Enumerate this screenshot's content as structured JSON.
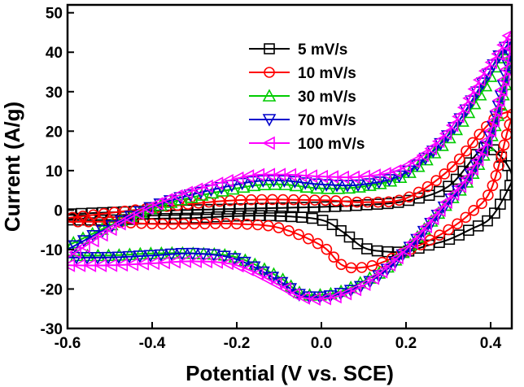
{
  "chart_data": {
    "type": "line",
    "xlabel": "Potential (V vs. SCE)",
    "ylabel": "Current (A/g)",
    "xlim": [
      -0.6,
      0.45
    ],
    "ylim": [
      -30,
      52
    ],
    "xticks": [
      -0.6,
      -0.4,
      -0.2,
      0.0,
      0.2,
      0.4
    ],
    "xtick_labels": [
      "-0.6",
      "-0.4",
      "-0.2",
      "0.0",
      "0.2",
      "0.4"
    ],
    "yticks": [
      -30,
      -20,
      -10,
      0,
      10,
      20,
      30,
      40,
      50
    ],
    "ytick_labels": [
      "-30",
      "-20",
      "-10",
      "0",
      "10",
      "20",
      "30",
      "40",
      "50"
    ],
    "legend_position": "top-center",
    "series": [
      {
        "name": "5 mV/s",
        "color": "#000000",
        "marker": "square",
        "x": [
          -0.6,
          -0.4,
          -0.2,
          0.0,
          0.1,
          0.2,
          0.3,
          0.38,
          0.42,
          0.45,
          0.44,
          0.4,
          0.35,
          0.3,
          0.25,
          0.2,
          0.15,
          0.1,
          0.05,
          0.0,
          -0.1,
          -0.2,
          -0.3,
          -0.4,
          -0.5,
          -0.6
        ],
        "y": [
          -1.0,
          -0.2,
          0.3,
          0.8,
          1.3,
          2.3,
          6.0,
          15.5,
          14.0,
          9.0,
          5.0,
          -2.0,
          -5.0,
          -7.5,
          -9.0,
          -10.5,
          -10.5,
          -9.5,
          -5.5,
          -2.5,
          -1.5,
          -1.5,
          -2.0,
          -2.2,
          -2.5,
          -2.5
        ]
      },
      {
        "name": "10 mV/s",
        "color": "#ff0000",
        "marker": "circle",
        "x": [
          -0.6,
          -0.4,
          -0.2,
          0.0,
          0.1,
          0.2,
          0.3,
          0.38,
          0.42,
          0.45,
          0.44,
          0.4,
          0.35,
          0.3,
          0.25,
          0.2,
          0.15,
          0.1,
          0.05,
          0.0,
          -0.1,
          -0.2,
          -0.3,
          -0.4,
          -0.5,
          -0.6
        ],
        "y": [
          -2.0,
          0.5,
          2.5,
          2.5,
          2.0,
          3.0,
          10.0,
          20.0,
          24.0,
          24.5,
          20.0,
          5.0,
          -1.0,
          -5.0,
          -8.0,
          -10.5,
          -13.0,
          -14.5,
          -14.0,
          -9.0,
          -4.5,
          -3.5,
          -3.5,
          -3.5,
          -3.0,
          -3.0
        ]
      },
      {
        "name": "30 mV/s",
        "color": "#00cc00",
        "marker": "triangle-up",
        "x": [
          -0.6,
          -0.4,
          -0.2,
          -0.1,
          0.0,
          0.1,
          0.2,
          0.3,
          0.38,
          0.42,
          0.45,
          0.44,
          0.4,
          0.35,
          0.3,
          0.25,
          0.2,
          0.15,
          0.1,
          0.05,
          0.0,
          -0.05,
          -0.1,
          -0.2,
          -0.3,
          -0.4,
          -0.5,
          -0.6
        ],
        "y": [
          -9.0,
          0.5,
          5.5,
          6.5,
          5.5,
          6.0,
          9.0,
          18.0,
          30.0,
          38.0,
          41.0,
          34.0,
          18.0,
          8.0,
          2.0,
          -4.0,
          -10.0,
          -15.0,
          -18.0,
          -20.5,
          -21.5,
          -21.0,
          -17.0,
          -12.0,
          -11.0,
          -11.0,
          -11.5,
          -11.5
        ]
      },
      {
        "name": "70 mV/s",
        "color": "#0000cc",
        "marker": "triangle-down",
        "x": [
          -0.6,
          -0.4,
          -0.2,
          -0.1,
          0.0,
          0.1,
          0.2,
          0.3,
          0.38,
          0.42,
          0.45,
          0.44,
          0.4,
          0.35,
          0.3,
          0.25,
          0.2,
          0.15,
          0.1,
          0.05,
          0.0,
          -0.05,
          -0.1,
          -0.2,
          -0.3,
          -0.4,
          -0.5,
          -0.6
        ],
        "y": [
          -10.0,
          0.8,
          6.5,
          7.5,
          6.5,
          6.5,
          9.5,
          19.0,
          32.0,
          39.0,
          42.5,
          36.0,
          19.0,
          8.5,
          2.0,
          -4.5,
          -10.5,
          -15.5,
          -19.0,
          -21.0,
          -22.0,
          -21.5,
          -18.0,
          -12.5,
          -11.0,
          -11.5,
          -12.0,
          -12.0
        ]
      },
      {
        "name": "100 mV/s",
        "color": "#ff00ff",
        "marker": "triangle-left",
        "x": [
          -0.6,
          -0.4,
          -0.2,
          -0.1,
          0.0,
          0.1,
          0.2,
          0.3,
          0.38,
          0.42,
          0.45,
          0.44,
          0.4,
          0.35,
          0.3,
          0.25,
          0.2,
          0.15,
          0.1,
          0.05,
          0.0,
          -0.05,
          -0.1,
          -0.2,
          -0.3,
          -0.4,
          -0.5,
          -0.6
        ],
        "y": [
          -12.0,
          1.0,
          8.0,
          9.0,
          8.5,
          8.5,
          11.0,
          20.0,
          34.0,
          40.0,
          45.0,
          37.0,
          20.0,
          9.0,
          2.5,
          -4.0,
          -10.0,
          -15.0,
          -19.0,
          -21.5,
          -22.5,
          -22.0,
          -19.0,
          -14.0,
          -13.0,
          -13.5,
          -14.0,
          -14.0
        ]
      }
    ]
  }
}
